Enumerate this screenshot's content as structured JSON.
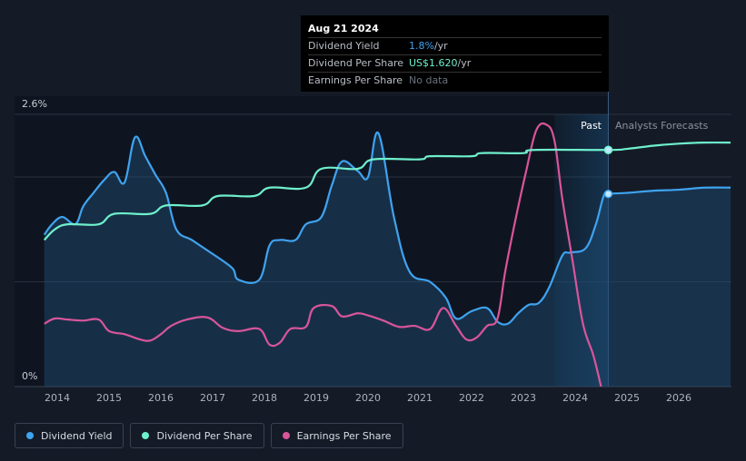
{
  "tooltip": {
    "date": "Aug 21 2024",
    "rows": [
      {
        "label": "Dividend Yield",
        "value": "1.8%",
        "unit": " /yr"
      },
      {
        "label": "Dividend Per Share",
        "value": "US$1.620",
        "unit": " /yr"
      },
      {
        "label": "Earnings Per Share",
        "value": "No data",
        "unit": ""
      }
    ]
  },
  "labels": {
    "past": "Past",
    "forecast": "Analysts Forecasts"
  },
  "legend": [
    {
      "label": "Dividend Yield",
      "color": "#3fa3f0"
    },
    {
      "label": "Dividend Per Share",
      "color": "#6ff0cc"
    },
    {
      "label": "Earnings Per Share",
      "color": "#d9559a"
    }
  ],
  "chart_data": {
    "type": "line",
    "x_ticks": [
      2014,
      2015,
      2016,
      2017,
      2018,
      2019,
      2020,
      2021,
      2022,
      2023,
      2024,
      2025,
      2026
    ],
    "y_ticks": [
      "0%",
      "2.6%"
    ],
    "ylim": [
      0,
      2.6
    ],
    "xlim": [
      2013.65,
      2027.0
    ],
    "forecast_start": 2024.64,
    "highlight_band": [
      2023.6,
      2024.64
    ],
    "series": [
      {
        "name": "Dividend Yield",
        "color": "#3fa3f0",
        "fill": true,
        "points": [
          [
            2013.75,
            1.45
          ],
          [
            2013.9,
            1.55
          ],
          [
            2014.1,
            1.62
          ],
          [
            2014.35,
            1.55
          ],
          [
            2014.5,
            1.72
          ],
          [
            2014.7,
            1.85
          ],
          [
            2014.9,
            1.97
          ],
          [
            2015.1,
            2.05
          ],
          [
            2015.3,
            1.95
          ],
          [
            2015.5,
            2.38
          ],
          [
            2015.7,
            2.2
          ],
          [
            2015.9,
            2.02
          ],
          [
            2016.1,
            1.85
          ],
          [
            2016.3,
            1.5
          ],
          [
            2016.6,
            1.4
          ],
          [
            2016.9,
            1.3
          ],
          [
            2017.2,
            1.2
          ],
          [
            2017.4,
            1.12
          ],
          [
            2017.5,
            1.02
          ],
          [
            2017.9,
            1.02
          ],
          [
            2018.1,
            1.35
          ],
          [
            2018.3,
            1.4
          ],
          [
            2018.6,
            1.4
          ],
          [
            2018.8,
            1.55
          ],
          [
            2019.1,
            1.62
          ],
          [
            2019.3,
            1.92
          ],
          [
            2019.5,
            2.15
          ],
          [
            2019.8,
            2.06
          ],
          [
            2020.0,
            2.0
          ],
          [
            2020.2,
            2.42
          ],
          [
            2020.5,
            1.62
          ],
          [
            2020.8,
            1.1
          ],
          [
            2021.2,
            1.0
          ],
          [
            2021.5,
            0.85
          ],
          [
            2021.7,
            0.65
          ],
          [
            2022.0,
            0.72
          ],
          [
            2022.3,
            0.75
          ],
          [
            2022.5,
            0.62
          ],
          [
            2022.7,
            0.6
          ],
          [
            2022.9,
            0.7
          ],
          [
            2023.1,
            0.78
          ],
          [
            2023.3,
            0.8
          ],
          [
            2023.5,
            0.95
          ],
          [
            2023.75,
            1.25
          ],
          [
            2023.9,
            1.28
          ],
          [
            2024.2,
            1.32
          ],
          [
            2024.4,
            1.55
          ],
          [
            2024.55,
            1.82
          ],
          [
            2024.64,
            1.84
          ],
          [
            2025.0,
            1.85
          ],
          [
            2025.5,
            1.87
          ],
          [
            2026.0,
            1.88
          ],
          [
            2026.5,
            1.9
          ],
          [
            2027.0,
            1.9
          ]
        ]
      },
      {
        "name": "Dividend Per Share",
        "color": "#6ff0cc",
        "fill": false,
        "points": [
          [
            2013.75,
            1.4
          ],
          [
            2013.95,
            1.5
          ],
          [
            2014.2,
            1.55
          ],
          [
            2014.8,
            1.55
          ],
          [
            2015.1,
            1.65
          ],
          [
            2015.8,
            1.65
          ],
          [
            2016.1,
            1.73
          ],
          [
            2016.8,
            1.73
          ],
          [
            2017.1,
            1.82
          ],
          [
            2017.8,
            1.82
          ],
          [
            2018.1,
            1.9
          ],
          [
            2018.8,
            1.9
          ],
          [
            2019.1,
            2.08
          ],
          [
            2019.8,
            2.08
          ],
          [
            2020.1,
            2.17
          ],
          [
            2021.0,
            2.17
          ],
          [
            2021.2,
            2.2
          ],
          [
            2022.0,
            2.2
          ],
          [
            2022.2,
            2.23
          ],
          [
            2023.0,
            2.23
          ],
          [
            2023.2,
            2.26
          ],
          [
            2024.64,
            2.26
          ],
          [
            2025.0,
            2.27
          ],
          [
            2025.5,
            2.3
          ],
          [
            2026.0,
            2.32
          ],
          [
            2026.5,
            2.33
          ],
          [
            2027.0,
            2.33
          ]
        ]
      },
      {
        "name": "Earnings Per Share",
        "color": "#d9559a",
        "fill": false,
        "points": [
          [
            2013.75,
            0.6
          ],
          [
            2013.95,
            0.65
          ],
          [
            2014.2,
            0.64
          ],
          [
            2014.5,
            0.63
          ],
          [
            2014.8,
            0.64
          ],
          [
            2015.0,
            0.53
          ],
          [
            2015.3,
            0.5
          ],
          [
            2015.6,
            0.45
          ],
          [
            2015.8,
            0.44
          ],
          [
            2016.0,
            0.5
          ],
          [
            2016.2,
            0.58
          ],
          [
            2016.5,
            0.64
          ],
          [
            2016.9,
            0.66
          ],
          [
            2017.2,
            0.56
          ],
          [
            2017.5,
            0.53
          ],
          [
            2017.9,
            0.55
          ],
          [
            2018.1,
            0.4
          ],
          [
            2018.3,
            0.42
          ],
          [
            2018.5,
            0.55
          ],
          [
            2018.8,
            0.57
          ],
          [
            2018.95,
            0.75
          ],
          [
            2019.3,
            0.77
          ],
          [
            2019.5,
            0.67
          ],
          [
            2019.8,
            0.7
          ],
          [
            2020.0,
            0.68
          ],
          [
            2020.3,
            0.63
          ],
          [
            2020.6,
            0.57
          ],
          [
            2020.9,
            0.58
          ],
          [
            2021.2,
            0.55
          ],
          [
            2021.45,
            0.75
          ],
          [
            2021.7,
            0.58
          ],
          [
            2021.9,
            0.45
          ],
          [
            2022.1,
            0.47
          ],
          [
            2022.3,
            0.58
          ],
          [
            2022.5,
            0.65
          ],
          [
            2022.65,
            1.1
          ],
          [
            2022.85,
            1.6
          ],
          [
            2023.05,
            2.05
          ],
          [
            2023.25,
            2.45
          ],
          [
            2023.45,
            2.5
          ],
          [
            2023.6,
            2.35
          ],
          [
            2023.75,
            1.8
          ],
          [
            2023.95,
            1.2
          ],
          [
            2024.15,
            0.6
          ],
          [
            2024.35,
            0.3
          ],
          [
            2024.5,
            0.0
          ]
        ]
      }
    ]
  }
}
